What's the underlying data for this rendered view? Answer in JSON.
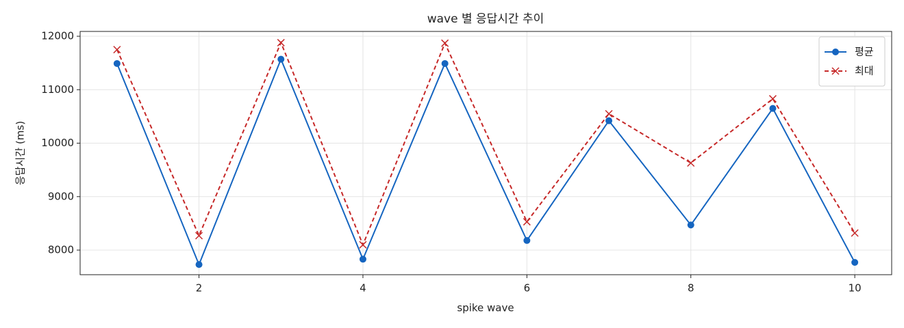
{
  "chart_data": {
    "type": "line",
    "title": "wave 별 응답시간 추이",
    "x_label": "spike wave",
    "y_label": "응답시간 (ms)",
    "x": [
      1,
      2,
      3,
      4,
      5,
      6,
      7,
      8,
      9,
      10
    ],
    "series": [
      {
        "name": "평균",
        "color": "#1565c0",
        "marker": "o",
        "linestyle": "solid",
        "values": [
          11490,
          7730,
          11570,
          7830,
          11490,
          8180,
          10420,
          8470,
          10650,
          7770
        ]
      },
      {
        "name": "최대",
        "color": "#c62828",
        "marker": "x",
        "linestyle": "dashed",
        "values": [
          11750,
          8270,
          11880,
          8100,
          11870,
          8530,
          10550,
          9630,
          10830,
          8320
        ]
      }
    ],
    "xlim": [
      0.55,
      10.45
    ],
    "ylim": [
      7540,
      12090
    ],
    "xticks": [
      2,
      4,
      6,
      8,
      10
    ],
    "yticks": [
      8000,
      9000,
      10000,
      11000,
      12000
    ],
    "grid": true,
    "legend": "upper right"
  }
}
